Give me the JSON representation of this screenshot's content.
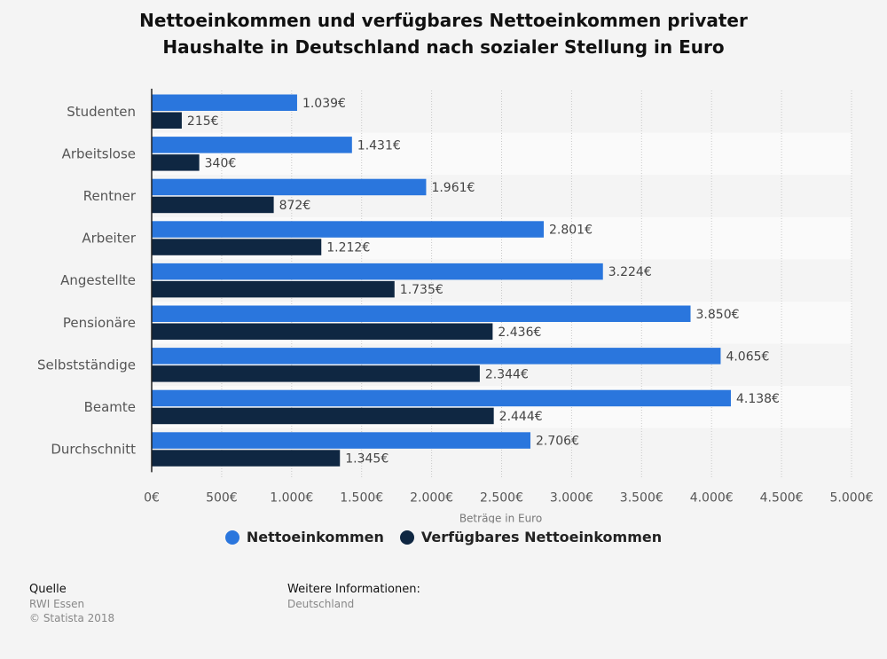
{
  "title_line1": "Nettoeinkommen und verfügbares Nettoeinkommen privater",
  "title_line2": "Haushalte in Deutschland nach sozialer Stellung in Euro",
  "chart_data": {
    "type": "bar",
    "orientation": "horizontal",
    "xlabel": "Beträge in Euro",
    "xlim": [
      0,
      5000
    ],
    "xticks": [
      0,
      500,
      1000,
      1500,
      2000,
      2500,
      3000,
      3500,
      4000,
      4500,
      5000
    ],
    "xtick_labels": [
      "0€",
      "500€",
      "1.000€",
      "1.500€",
      "2.000€",
      "2.500€",
      "3.000€",
      "3.500€",
      "4.000€",
      "4.500€",
      "5.000€"
    ],
    "grid": true,
    "legend_position": "bottom",
    "categories": [
      "Studenten",
      "Arbeitslose",
      "Rentner",
      "Arbeiter",
      "Angestellte",
      "Pensionäre",
      "Selbstständige",
      "Beamte",
      "Durchschnitt"
    ],
    "series": [
      {
        "name": "Nettoeinkommen",
        "color": "#2a76dd",
        "values": [
          1039,
          1431,
          1961,
          2801,
          3224,
          3850,
          4065,
          4138,
          2706
        ],
        "labels": [
          "1.039€",
          "1.431€",
          "1.961€",
          "2.801€",
          "3.224€",
          "3.850€",
          "4.065€",
          "4.138€",
          "2.706€"
        ]
      },
      {
        "name": "Verfügbares Nettoeinkommen",
        "color": "#0f2742",
        "values": [
          215,
          340,
          872,
          1212,
          1735,
          2436,
          2344,
          2444,
          1345
        ],
        "labels": [
          "215€",
          "340€",
          "872€",
          "1.212€",
          "1.735€",
          "2.436€",
          "2.344€",
          "2.444€",
          "1.345€"
        ]
      }
    ]
  },
  "footer": {
    "source_label": "Quelle",
    "source_value": "RWI Essen",
    "copyright": "© Statista 2018",
    "info_label": "Weitere Informationen:",
    "info_value": "Deutschland"
  }
}
